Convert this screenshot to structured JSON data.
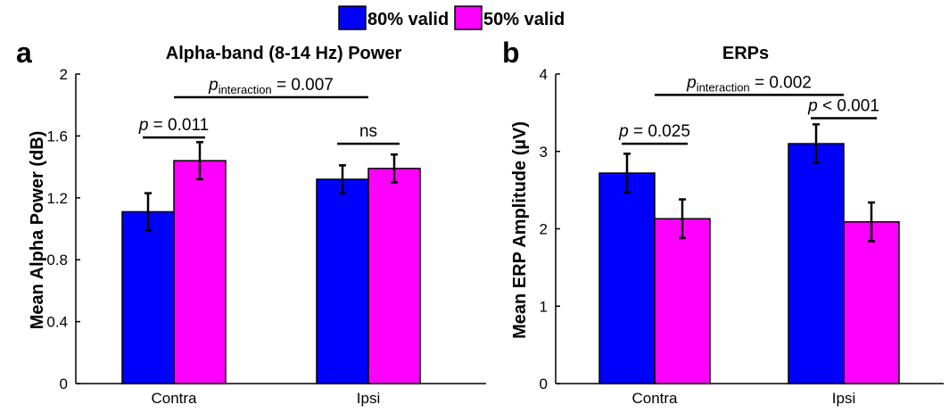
{
  "legend": [
    {
      "label": "80% valid",
      "color": "#0000ff"
    },
    {
      "label": "50% valid",
      "color": "#ff00ff"
    }
  ],
  "chart_data": [
    {
      "type": "bar",
      "panel_label": "a",
      "title": "Alpha-band (8-14 Hz) Power",
      "ylabel": "Mean Alpha Power (dB)",
      "xlabel": "",
      "categories": [
        "Contra",
        "Ipsi"
      ],
      "ylim": [
        0,
        2
      ],
      "yticks": [
        "0",
        "0.4",
        "0.8",
        "1.2",
        "1.6",
        "2"
      ],
      "series": [
        {
          "name": "80% valid",
          "values": [
            1.11,
            1.32
          ],
          "errors": [
            0.12,
            0.09
          ],
          "color": "#0000ff"
        },
        {
          "name": "50% valid",
          "values": [
            1.44,
            1.39
          ],
          "errors": [
            0.12,
            0.09
          ],
          "color": "#ff00ff"
        }
      ],
      "annotations": [
        {
          "label_pre": "p",
          "label_sub": "",
          "label_post": " = 0.011",
          "from": "Contra|80% valid",
          "to": "Contra|50% valid",
          "y": 1.59
        },
        {
          "label_pre": "",
          "label_sub": "",
          "label_post": "ns",
          "from": "Ipsi|80% valid",
          "to": "Ipsi|50% valid",
          "y": 1.55
        },
        {
          "label_pre": "p",
          "label_sub": "interaction",
          "label_post": " = 0.007",
          "from": "Contra",
          "to": "Ipsi",
          "y": 1.85
        }
      ]
    },
    {
      "type": "bar",
      "panel_label": "b",
      "title": "ERPs",
      "ylabel": "Mean ERP Amplitude (µV)",
      "xlabel": "",
      "categories": [
        "Contra",
        "Ipsi"
      ],
      "ylim": [
        0,
        4
      ],
      "yticks": [
        "0",
        "1",
        "2",
        "3",
        "4"
      ],
      "series": [
        {
          "name": "80% valid",
          "values": [
            2.72,
            3.1
          ],
          "errors": [
            0.25,
            0.25
          ],
          "color": "#0000ff"
        },
        {
          "name": "50% valid",
          "values": [
            2.13,
            2.09
          ],
          "errors": [
            0.25,
            0.25
          ],
          "color": "#ff00ff"
        }
      ],
      "annotations": [
        {
          "label_pre": "p",
          "label_sub": "",
          "label_post": " = 0.025",
          "from": "Contra|80% valid",
          "to": "Contra|50% valid",
          "y": 3.1
        },
        {
          "label_pre": "p",
          "label_sub": "",
          "label_post": " < 0.001",
          "from": "Ipsi|80% valid",
          "to": "Ipsi|50% valid",
          "y": 3.43
        },
        {
          "label_pre": "p",
          "label_sub": "interaction",
          "label_post": " = 0.002",
          "from": "Contra",
          "to": "Ipsi",
          "y": 3.73
        }
      ]
    }
  ]
}
